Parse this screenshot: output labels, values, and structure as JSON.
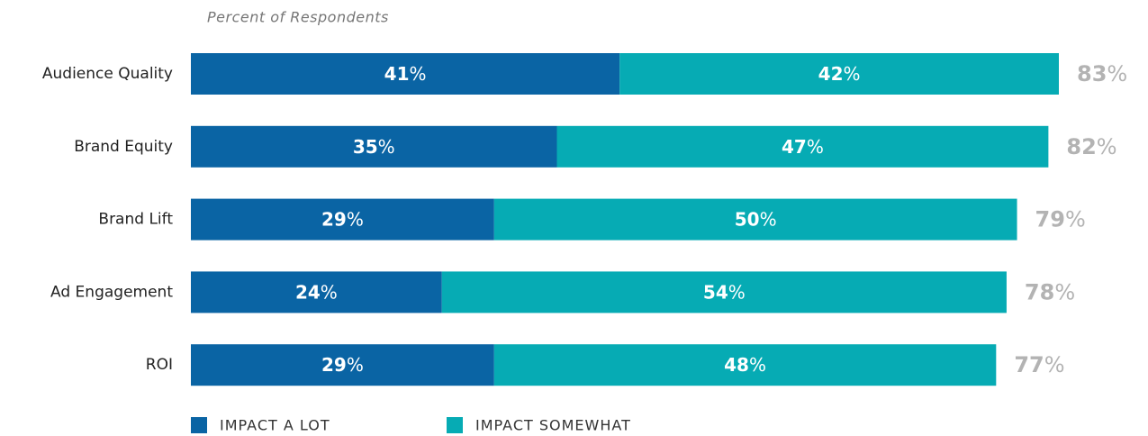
{
  "chart_data": {
    "type": "stacked-barh",
    "subtitle": "Percent of Respondents",
    "categories": [
      "Audience Quality",
      "Brand Equity",
      "Brand Lift",
      "Ad Engagement",
      "ROI"
    ],
    "series": [
      {
        "name": "IMPACT A LOT",
        "color": "#0a64a4",
        "values": [
          41,
          35,
          29,
          24,
          29
        ],
        "value_labels": [
          "41%",
          "35%",
          "29%",
          "24%",
          "29%"
        ]
      },
      {
        "name": "IMPACT SOMEWHAT",
        "color": "#06abb4",
        "values": [
          42,
          47,
          50,
          54,
          48
        ],
        "value_labels": [
          "42%",
          "47%",
          "50%",
          "54%",
          "48%"
        ]
      }
    ],
    "totals": [
      83,
      82,
      79,
      78,
      77
    ],
    "total_labels": [
      "83%",
      "82%",
      "79%",
      "78%",
      "77%"
    ]
  }
}
